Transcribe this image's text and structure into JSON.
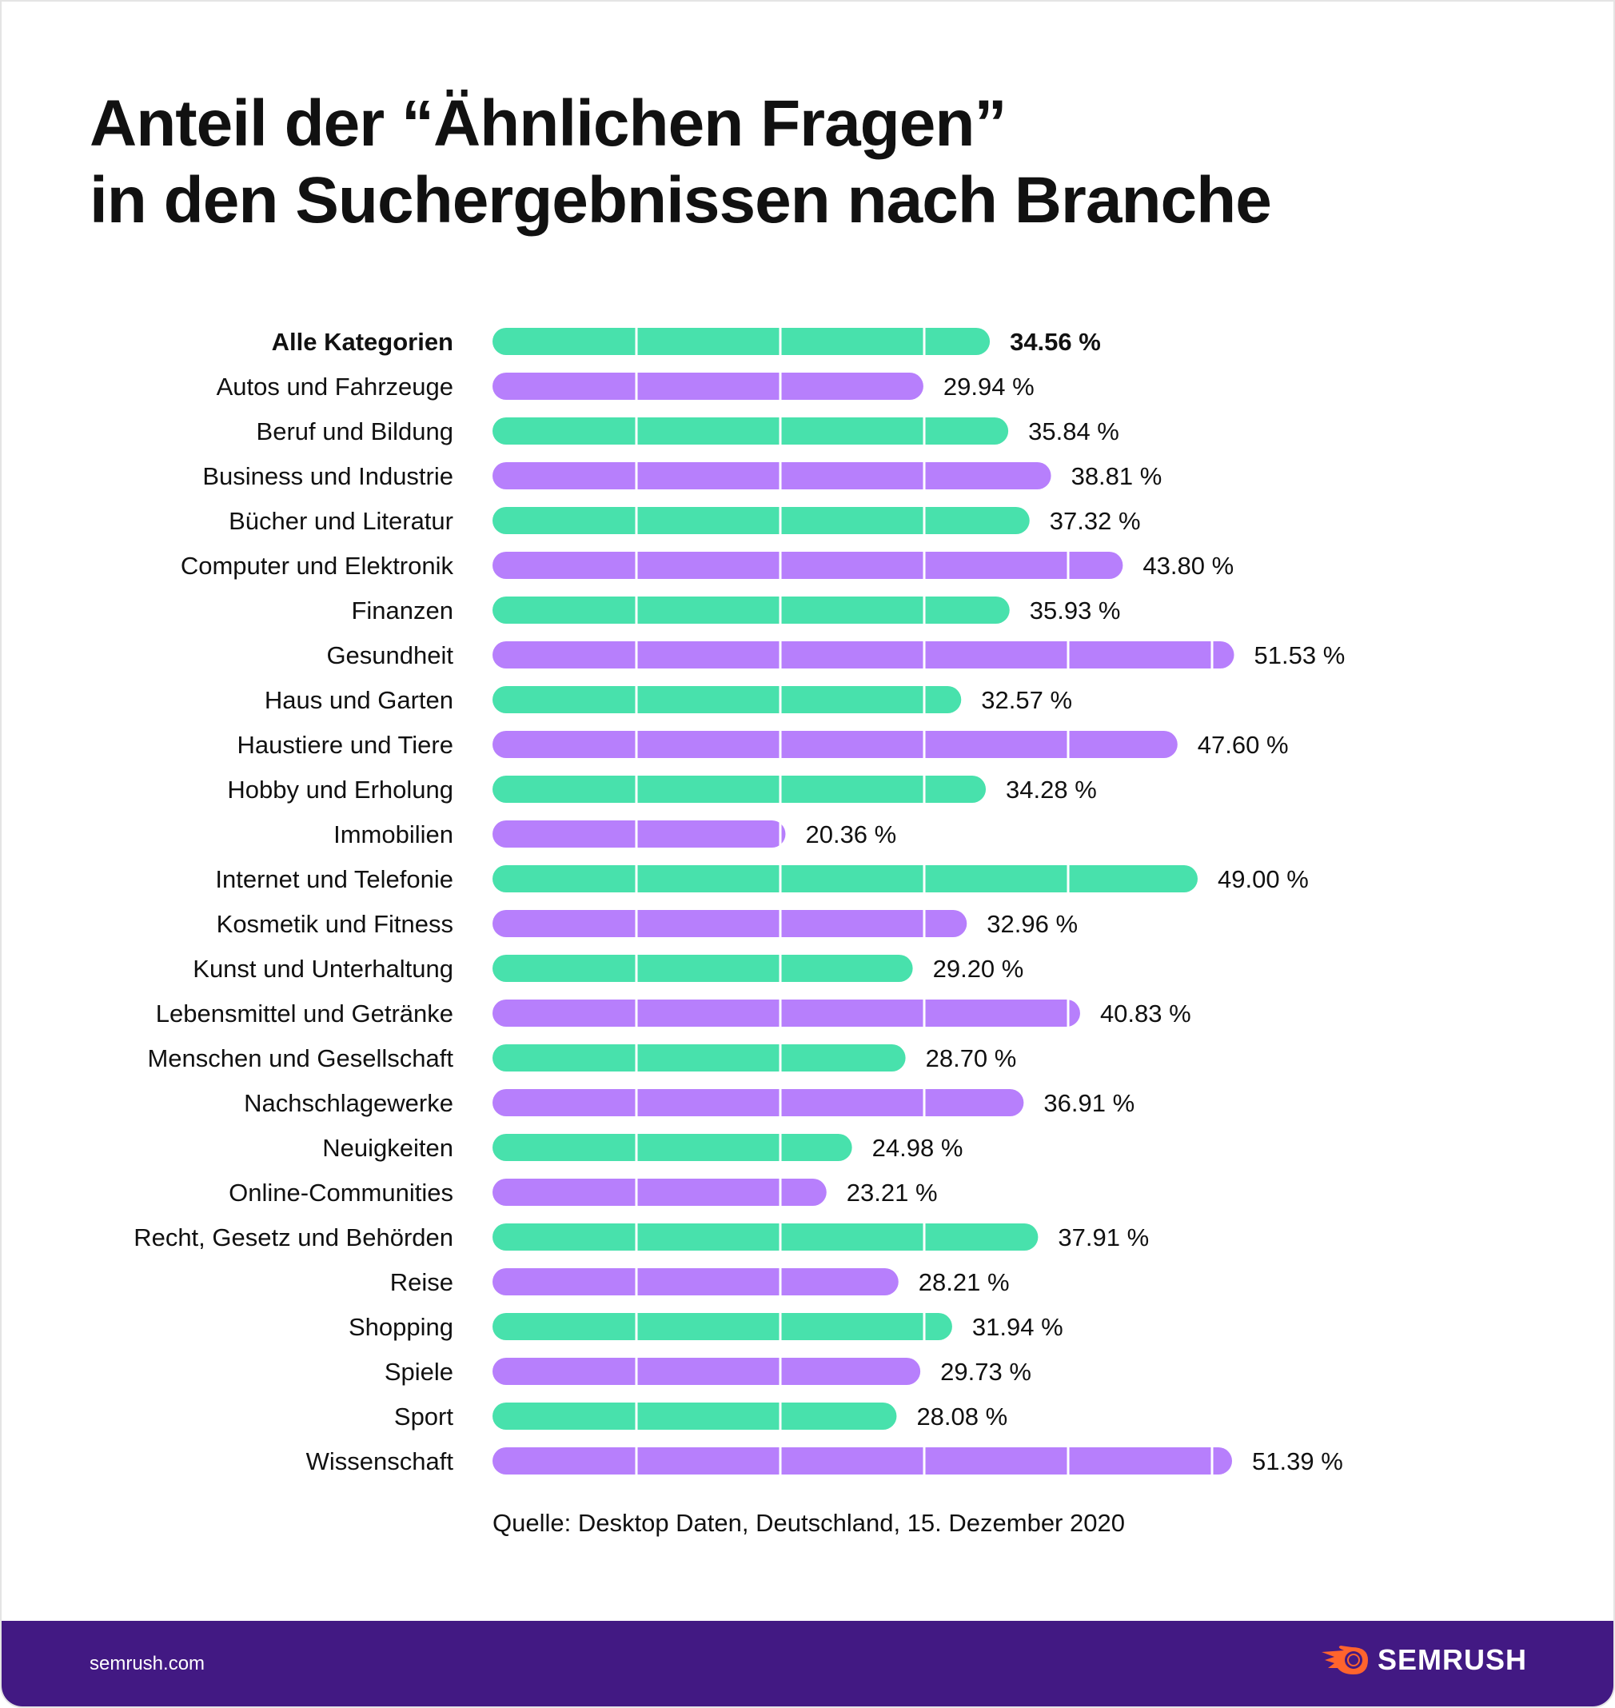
{
  "title_line1": "Anteil der “Ähnlichen Fragen”",
  "title_line2": "in den Suchergebnissen nach Branche",
  "source": "Quelle: Desktop Daten, Deutschland, 15. Dezember 2020",
  "footer": {
    "site": "semrush.com",
    "logo_text": "SEMRUSH",
    "logo_icon": "semrush-fireball-icon"
  },
  "colors": {
    "green": "#48E1AC",
    "purple": "#B77FFC",
    "footer_bg": "#421983",
    "logo_orange": "#FF642D"
  },
  "chart_data": {
    "type": "bar",
    "orientation": "horizontal",
    "unit": "%",
    "xlim": [
      0,
      60
    ],
    "gridlines_at": [
      10,
      20,
      30,
      40,
      50
    ],
    "categories": [
      "Alle Kategorien",
      "Autos und Fahrzeuge",
      "Beruf und Bildung",
      "Business und Industrie",
      "Bücher und Literatur",
      "Computer und Elektronik",
      "Finanzen",
      "Gesundheit",
      "Haus und Garten",
      "Haustiere und Tiere",
      "Hobby und Erholung",
      "Immobilien",
      "Internet und Telefonie",
      "Kosmetik und Fitness",
      "Kunst und Unterhaltung",
      "Lebensmittel und Getränke",
      "Menschen und Gesellschaft",
      "Nachschlagewerke",
      "Neuigkeiten",
      "Online-Communities",
      "Recht, Gesetz und Behörden",
      "Reise",
      "Shopping",
      "Spiele",
      "Sport",
      "Wissenschaft"
    ],
    "values": [
      34.56,
      29.94,
      35.84,
      38.81,
      37.32,
      43.8,
      35.93,
      51.53,
      32.57,
      47.6,
      34.28,
      20.36,
      49.0,
      32.96,
      29.2,
      40.83,
      28.7,
      36.91,
      24.98,
      23.21,
      37.91,
      28.21,
      31.94,
      29.73,
      28.08,
      51.39
    ],
    "labels": [
      "34.56 %",
      "29.94 %",
      "35.84 %",
      "38.81 %",
      "37.32 %",
      "43.80 %",
      "35.93 %",
      "51.53 %",
      "32.57 %",
      "47.60 %",
      "34.28 %",
      "20.36 %",
      "49.00 %",
      "32.96 %",
      "29.20 %",
      "40.83 %",
      "28.70 %",
      "36.91 %",
      "24.98 %",
      "23.21 %",
      "37.91 %",
      "28.21 %",
      "31.94 %",
      "29.73 %",
      "28.08 %",
      "51.39 %"
    ],
    "bar_colors": "alternating green/purple",
    "highlighted": "Alle Kategorien"
  }
}
